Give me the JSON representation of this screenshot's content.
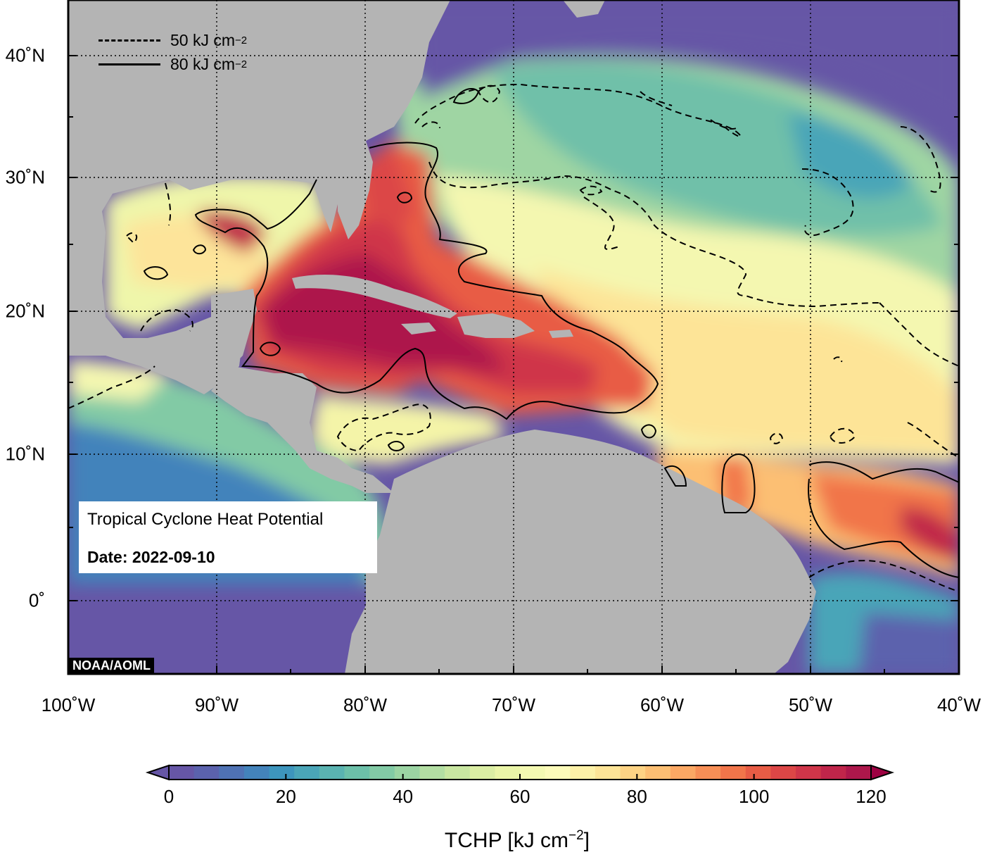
{
  "map": {
    "lat_labels": [
      "40˚N",
      "30˚N",
      "20˚N",
      "10˚N",
      "0˚"
    ],
    "lon_labels": [
      "100˚W",
      "90˚W",
      "80˚W",
      "70˚W",
      "60˚W",
      "50˚W",
      "40˚W"
    ],
    "lat_values": [
      40,
      30,
      20,
      10,
      0
    ],
    "lon_values": [
      -100,
      -90,
      -80,
      -70,
      -60,
      -50,
      -40
    ],
    "extent": {
      "lon": [
        -100,
        -40
      ],
      "lat": [
        -5,
        45
      ]
    },
    "grid": "dotted",
    "land_color": "#b4b4b4",
    "deep_water_color": "#6656a6"
  },
  "legend": {
    "dashed_label": "50 kJ cm",
    "dashed_sup": "−2",
    "solid_label": "80 kJ cm",
    "solid_sup": "−2"
  },
  "info": {
    "title": "Tropical Cyclone Heat Potential",
    "date": "Date: 2022-09-10"
  },
  "credit": "NOAA/AOML",
  "colorbar": {
    "title_main": "TCHP [kJ cm",
    "title_sup": "−2",
    "title_end": "]",
    "ticks": [
      "0",
      "20",
      "40",
      "60",
      "80",
      "100",
      "120"
    ],
    "tick_values": [
      0,
      20,
      40,
      60,
      80,
      100,
      120
    ],
    "range": [
      0,
      120
    ],
    "step": 5,
    "colors": [
      "#6656a6",
      "#5b62ad",
      "#4f72b4",
      "#4383bb",
      "#3d95bd",
      "#4aa5b8",
      "#5ab3b1",
      "#6cc0a9",
      "#82caa5",
      "#9bd4a3",
      "#b3dea3",
      "#c8e6a1",
      "#dbeea4",
      "#eaf5a8",
      "#f4f9b2",
      "#fcfbba",
      "#fdf1a8",
      "#fde497",
      "#fdd384",
      "#fcbf73",
      "#fba864",
      "#f78f56",
      "#f1754a",
      "#e85c45",
      "#dc4646",
      "#cf3549",
      "#c0254a",
      "#ad174b"
    ],
    "under_color": "#6656a6",
    "over_color": "#9e0142"
  }
}
